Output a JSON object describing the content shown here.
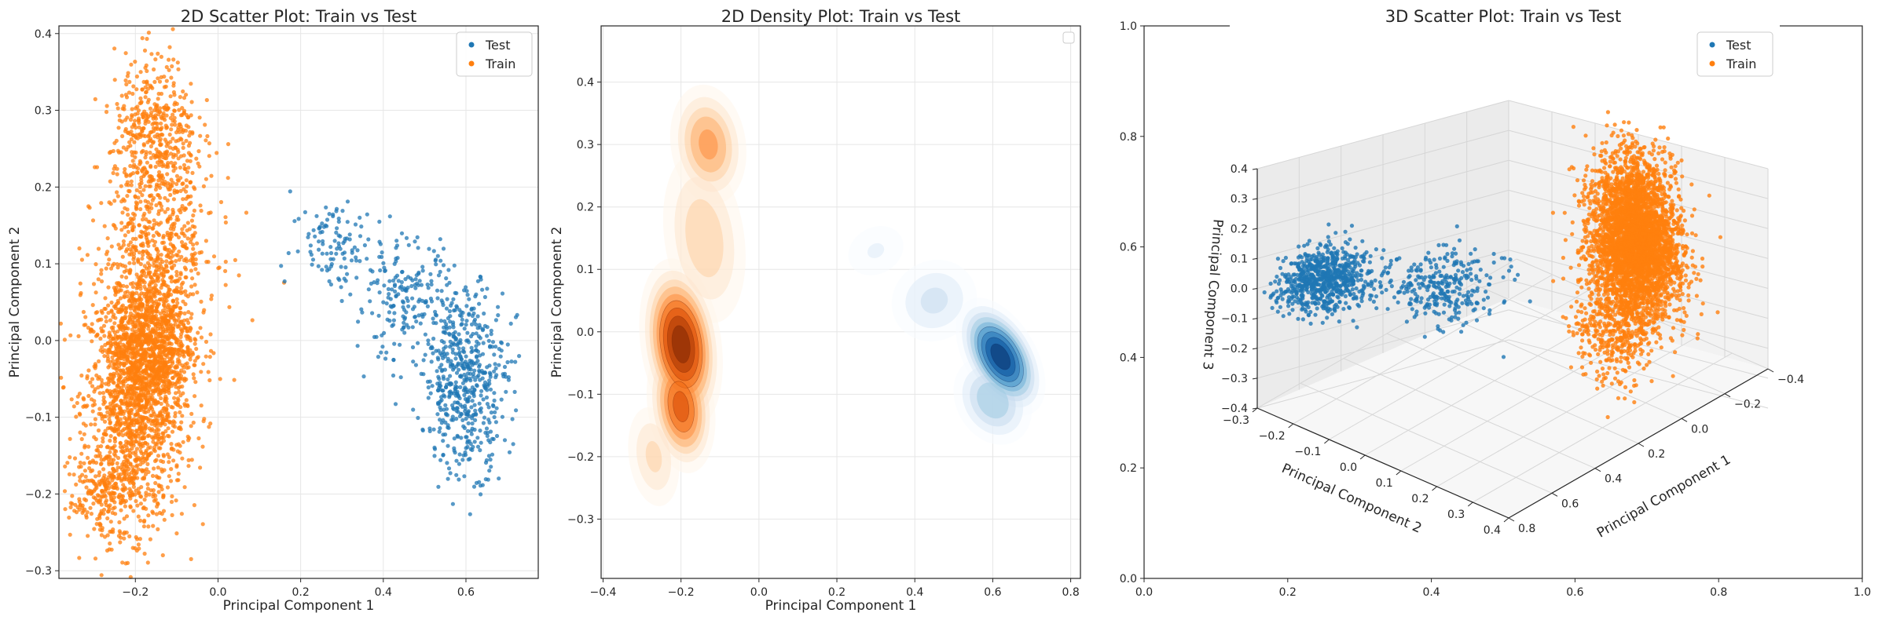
{
  "colors": {
    "test": "#1f77b4",
    "train": "#ff7f0e"
  },
  "chart_data": [
    {
      "type": "scatter",
      "title": "2D Scatter Plot: Train vs Test",
      "xlabel": "Principal Component 1",
      "ylabel": "Principal Component 2",
      "xlim": [
        -0.385,
        0.775
      ],
      "ylim": [
        -0.31,
        0.41
      ],
      "xticks": [
        -0.2,
        0.0,
        0.2,
        0.4,
        0.6
      ],
      "xtick_labels": [
        "−0.2",
        "0.0",
        "0.2",
        "0.4",
        "0.6"
      ],
      "yticks": [
        -0.3,
        -0.2,
        -0.1,
        0.0,
        0.1,
        0.2,
        0.3,
        0.4
      ],
      "ytick_labels": [
        "−0.3",
        "−0.2",
        "−0.1",
        "0.0",
        "0.1",
        "0.2",
        "0.3",
        "0.4"
      ],
      "grid": true,
      "legend": "top-right",
      "series": [
        {
          "name": "Test",
          "clusters": [
            {
              "cx": 0.6,
              "cy": -0.05,
              "sx": 0.05,
              "sy": 0.06,
              "n": 550
            },
            {
              "cx": 0.45,
              "cy": 0.05,
              "sx": 0.06,
              "sy": 0.04,
              "n": 200
            },
            {
              "cx": 0.28,
              "cy": 0.13,
              "sx": 0.05,
              "sy": 0.03,
              "n": 100
            }
          ]
        },
        {
          "name": "Train",
          "clusters": [
            {
              "cx": -0.2,
              "cy": -0.08,
              "sx": 0.06,
              "sy": 0.08,
              "n": 1500
            },
            {
              "cx": -0.16,
              "cy": 0.0,
              "sx": 0.05,
              "sy": 0.05,
              "n": 900
            },
            {
              "cx": -0.15,
              "cy": 0.27,
              "sx": 0.05,
              "sy": 0.05,
              "n": 450
            },
            {
              "cx": -0.14,
              "cy": 0.13,
              "sx": 0.07,
              "sy": 0.06,
              "n": 500
            },
            {
              "cx": -0.28,
              "cy": -0.2,
              "sx": 0.04,
              "sy": 0.03,
              "n": 200
            }
          ]
        }
      ]
    },
    {
      "type": "heatmap",
      "subtype": "kde-density",
      "title": "2D Density Plot: Train vs Test",
      "xlabel": "Principal Component 1",
      "ylabel": "Principal Component 2",
      "xlim": [
        -0.405,
        0.825
      ],
      "ylim": [
        -0.395,
        0.49
      ],
      "xticks": [
        -0.4,
        -0.2,
        0.0,
        0.2,
        0.4,
        0.6,
        0.8
      ],
      "xtick_labels": [
        "−0.4",
        "−0.2",
        "0.0",
        "0.2",
        "0.4",
        "0.6",
        "0.8"
      ],
      "yticks": [
        -0.3,
        -0.2,
        -0.1,
        0.0,
        0.1,
        0.2,
        0.3,
        0.4
      ],
      "ytick_labels": [
        "−0.3",
        "−0.2",
        "−0.1",
        "0.0",
        "0.1",
        "0.2",
        "0.3",
        "0.4"
      ],
      "grid": true,
      "legend": "top-right (empty)",
      "series": [
        {
          "name": "Train",
          "colormap": "Oranges",
          "modes": [
            {
              "cx": -0.2,
              "cy": -0.02,
              "sx": 0.045,
              "sy": 0.06,
              "w": 1.0
            },
            {
              "cx": -0.2,
              "cy": -0.12,
              "sx": 0.04,
              "sy": 0.05,
              "w": 0.7
            },
            {
              "cx": -0.13,
              "cy": 0.3,
              "sx": 0.05,
              "sy": 0.05,
              "w": 0.45
            },
            {
              "cx": -0.14,
              "cy": 0.15,
              "sx": 0.06,
              "sy": 0.08,
              "w": 0.3
            },
            {
              "cx": -0.27,
              "cy": -0.2,
              "sx": 0.04,
              "sy": 0.05,
              "w": 0.25
            }
          ]
        },
        {
          "name": "Test",
          "colormap": "Blues",
          "modes": [
            {
              "cx": 0.62,
              "cy": -0.04,
              "sx": 0.04,
              "sy": 0.045,
              "w": 1.0
            },
            {
              "cx": 0.6,
              "cy": -0.11,
              "sx": 0.05,
              "sy": 0.04,
              "w": 0.4
            },
            {
              "cx": 0.45,
              "cy": 0.05,
              "sx": 0.07,
              "sy": 0.04,
              "w": 0.25
            },
            {
              "cx": 0.3,
              "cy": 0.13,
              "sx": 0.06,
              "sy": 0.03,
              "w": 0.15
            }
          ]
        }
      ]
    },
    {
      "type": "scatter",
      "subtype": "3d",
      "title": "3D Scatter Plot: Train vs Test",
      "xlabel": "Principal Component 1",
      "ylabel": "Principal Component 2",
      "zlabel": "Principal Component 3",
      "x_ticks": [
        "−0.4",
        "−0.2",
        "0.0",
        "0.2",
        "0.4",
        "0.6",
        "0.8"
      ],
      "y_ticks": [
        "−0.3",
        "−0.2",
        "−0.1",
        "0.0",
        "0.1",
        "0.2",
        "0.3",
        "0.4"
      ],
      "z_ticks": [
        "−0.4",
        "−0.3",
        "−0.2",
        "−0.1",
        "0.0",
        "0.1",
        "0.2",
        "0.3",
        "0.4"
      ],
      "frame_ticks": [
        "0.0",
        "0.2",
        "0.4",
        "0.6",
        "0.8",
        "1.0"
      ],
      "legend": "top-right",
      "series": [
        {
          "name": "Test",
          "clusters": [
            {
              "x": 0.6,
              "y": -0.25,
              "z": -0.02,
              "sx": 0.08,
              "sy": 0.05,
              "sz": 0.04,
              "n": 900
            },
            {
              "x": 0.35,
              "y": -0.05,
              "z": -0.05,
              "sx": 0.08,
              "sy": 0.06,
              "sz": 0.04,
              "n": 300
            }
          ]
        },
        {
          "name": "Train",
          "clusters": [
            {
              "x": -0.2,
              "y": 0.15,
              "z": 0.0,
              "sx": 0.05,
              "sy": 0.05,
              "sz": 0.13,
              "n": 2800
            },
            {
              "x": -0.05,
              "y": 0.25,
              "z": 0.05,
              "sx": 0.06,
              "sy": 0.06,
              "sz": 0.1,
              "n": 900
            },
            {
              "x": 0.15,
              "y": 0.3,
              "z": -0.1,
              "sx": 0.06,
              "sy": 0.05,
              "sz": 0.08,
              "n": 400
            }
          ]
        }
      ]
    }
  ]
}
